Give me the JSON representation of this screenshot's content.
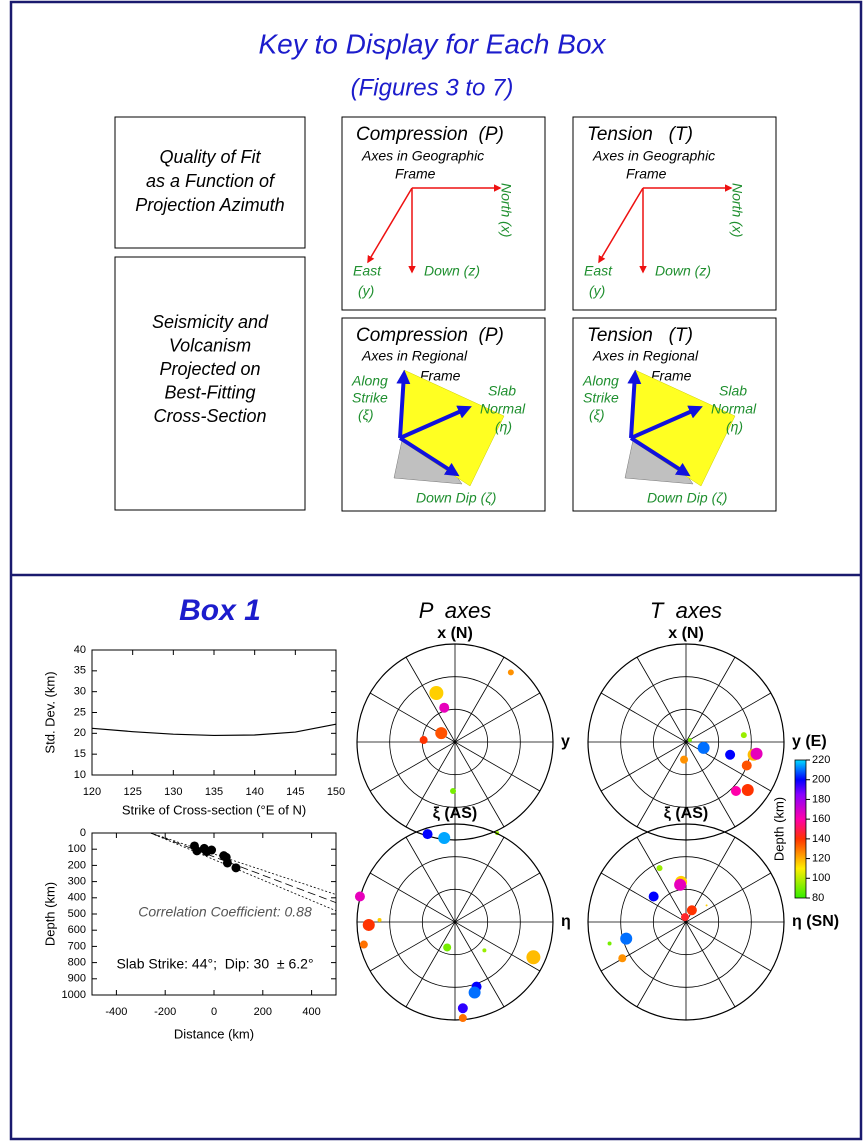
{
  "key": {
    "title": "Key to Display for Each Box",
    "subtitle": "(Figures 3 to 7)",
    "fit_box": [
      "Quality of Fit",
      "as a Function of",
      "Projection Azimuth"
    ],
    "section_box": [
      "Seismicity and",
      "Volcanism",
      "Projected on",
      "Best-Fitting",
      "Cross-Section"
    ],
    "panels": [
      {
        "title": "Compression  (P)",
        "lines": [
          "Axes in Geographic",
          "Frame"
        ],
        "north": "North (x)",
        "east": [
          "East",
          "(y)"
        ],
        "down": "Down (z)"
      },
      {
        "title": "Tension   (T)",
        "lines": [
          "Axes in Geographic",
          "Frame"
        ],
        "north": "North (x)",
        "east": [
          "East",
          "(y)"
        ],
        "down": "Down (z)"
      },
      {
        "title": "Compression  (P)",
        "lines": [
          "Axes in Regional",
          "Frame"
        ],
        "strike": [
          "Along",
          "Strike",
          "(ξ)"
        ],
        "normal": [
          "Slab",
          "Normal",
          "(η)"
        ],
        "dip": "Down Dip (ζ)"
      },
      {
        "title": "Tension   (T)",
        "lines": [
          "Axes in Regional",
          "Frame"
        ],
        "strike": [
          "Along",
          "Strike",
          "(ξ)"
        ],
        "normal": [
          "Slab",
          "Normal",
          "(η)"
        ],
        "dip": "Down Dip (ζ)"
      }
    ]
  },
  "box_title": "Box 1",
  "chart_data": [
    {
      "type": "line",
      "y_label": "Std. Dev. (km)",
      "x_label": "Strike of Cross-section (°E of N)",
      "x": [
        120,
        125,
        130,
        135,
        140,
        145,
        150
      ],
      "values": [
        21.2,
        20.4,
        19.8,
        19.5,
        19.6,
        20.3,
        22.2
      ],
      "color": "#000000",
      "xlim": [
        120,
        150
      ],
      "xticks": [
        120,
        125,
        130,
        135,
        140,
        145,
        150
      ],
      "ylim": [
        10,
        40
      ],
      "yticks": [
        10,
        15,
        20,
        25,
        30,
        35,
        40
      ]
    },
    {
      "type": "scatter",
      "y_label": "Depth (km)",
      "x_label": "Distance (km)",
      "x": [
        -80,
        -70,
        -40,
        -30,
        -10,
        40,
        50,
        55,
        90
      ],
      "values": [
        80,
        110,
        95,
        115,
        105,
        140,
        150,
        185,
        215
      ],
      "color": "#000000",
      "xlim": [
        -500,
        500
      ],
      "xticks": [
        -400,
        -200,
        0,
        200,
        400
      ],
      "ylim": [
        0,
        1000
      ],
      "y_inverted": true,
      "yticks": [
        0,
        100,
        200,
        300,
        400,
        500,
        600,
        700,
        800,
        900,
        1000
      ],
      "fit_lines": [
        {
          "dash": "2 2",
          "x": [
            -260,
            500
          ],
          "values": [
            0,
            380
          ]
        },
        {
          "dash": "8 4",
          "x": [
            -260,
            500
          ],
          "values": [
            0,
            430
          ]
        },
        {
          "dash": "2 2",
          "x": [
            -260,
            500
          ],
          "values": [
            0,
            480
          ]
        }
      ],
      "annotations": [
        "Correlation Coefficient: 0.88",
        "Slab Strike: 44°;  Dip: 30  ± 6.2°"
      ]
    },
    {
      "type": "stereonet",
      "title": "P  axes",
      "top_label": "x (N)",
      "right_label": "y",
      "x": [
        -0.19,
        -0.11,
        -0.14,
        -0.32,
        0.57,
        -0.02,
        -0.28,
        -0.11,
        0.43
      ],
      "y": [
        0.5,
        0.35,
        0.09,
        0.02,
        0.71,
        -0.5,
        -0.94,
        -0.98,
        -0.93
      ],
      "depth": [
        115,
        165,
        135,
        140,
        125,
        90,
        200,
        215,
        95
      ],
      "size": [
        7,
        5,
        6,
        4,
        3,
        3,
        5,
        6,
        2
      ]
    },
    {
      "type": "stereonet",
      "title": "T  axes",
      "top_label": "x (N)",
      "right_label": "y (E)",
      "x": [
        0.18,
        0.45,
        0.69,
        0.72,
        0.62,
        0.51,
        0.63,
        0.59,
        -0.02,
        0.04
      ],
      "y": [
        -0.06,
        -0.13,
        -0.13,
        -0.12,
        -0.24,
        -0.5,
        -0.49,
        0.07,
        -0.18,
        0.02
      ],
      "depth": [
        210,
        200,
        118,
        165,
        135,
        160,
        140,
        95,
        125,
        90
      ],
      "size": [
        6,
        5,
        6,
        6,
        5,
        5,
        6,
        3,
        4,
        2
      ]
    },
    {
      "type": "stereonet",
      "top_label": "ξ (AS)",
      "right_label": "η",
      "x": [
        -0.97,
        -0.88,
        -0.93,
        -0.77,
        0.8,
        -0.08,
        0.22,
        0.2,
        0.08,
        0.08,
        0.3
      ],
      "y": [
        0.26,
        -0.03,
        -0.23,
        0.02,
        -0.36,
        -0.26,
        -0.66,
        -0.72,
        -0.88,
        -0.98,
        -0.29
      ],
      "depth": [
        165,
        140,
        130,
        115,
        118,
        90,
        200,
        210,
        195,
        130,
        95
      ],
      "size": [
        5,
        6,
        4,
        2,
        7,
        4,
        5,
        6,
        5,
        4,
        2
      ]
    },
    {
      "type": "stereonet",
      "top_label": "ξ (AS)",
      "right_label": "η (SN)",
      "x": [
        -0.27,
        -0.05,
        -0.06,
        -0.33,
        -0.61,
        -0.65,
        -0.78,
        0.06,
        -0.01,
        0.21
      ],
      "y": [
        0.55,
        0.41,
        0.38,
        0.26,
        -0.17,
        -0.37,
        -0.22,
        0.12,
        0.05,
        0.17
      ],
      "depth": [
        95,
        115,
        165,
        200,
        210,
        125,
        90,
        140,
        145,
        115
      ],
      "size": [
        3,
        6,
        6,
        5,
        6,
        4,
        2,
        5,
        4,
        1
      ]
    },
    {
      "type": "colorbar",
      "label": "Depth (km)",
      "ylim": [
        80,
        220
      ],
      "yticks": [
        80,
        100,
        120,
        140,
        160,
        180,
        200,
        220
      ],
      "colormap": [
        [
          80,
          "#33ee00"
        ],
        [
          110,
          "#ffee00"
        ],
        [
          140,
          "#ff3300"
        ],
        [
          160,
          "#ff00aa"
        ],
        [
          185,
          "#8800ff"
        ],
        [
          200,
          "#0000ff"
        ],
        [
          220,
          "#00ddff"
        ]
      ]
    }
  ]
}
